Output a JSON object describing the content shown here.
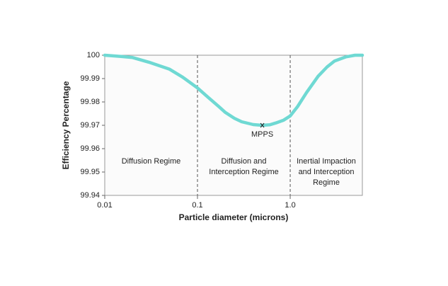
{
  "chart_data": {
    "type": "line",
    "xlabel": "Particle diameter (microns)",
    "ylabel": "Efficiency Percentage",
    "x": [
      0.01,
      0.015,
      0.02,
      0.03,
      0.05,
      0.07,
      0.1,
      0.13,
      0.17,
      0.2,
      0.25,
      0.3,
      0.4,
      0.5,
      0.6,
      0.7,
      0.85,
      1,
      1.2,
      1.5,
      2,
      2.5,
      3,
      4,
      5,
      6
    ],
    "series": [
      {
        "name": "Efficiency",
        "color": "#6fd9d3",
        "values": [
          100,
          99.9995,
          99.999,
          99.997,
          99.994,
          99.9905,
          99.986,
          99.982,
          99.978,
          99.9755,
          99.973,
          99.9715,
          99.9703,
          99.97,
          99.9702,
          99.971,
          99.9722,
          99.974,
          99.978,
          99.984,
          99.991,
          99.995,
          99.9975,
          99.9993,
          100,
          100
        ]
      }
    ],
    "log_x": true,
    "xlim": [
      0.01,
      6
    ],
    "ylim": [
      99.94,
      100
    ],
    "xticks": [
      0.01,
      0.1,
      {
        "value": 1,
        "label": "1.0"
      }
    ],
    "yticks": [
      99.94,
      99.95,
      99.96,
      99.97,
      99.98,
      99.99,
      100
    ],
    "boundaries": [
      0.1,
      1
    ],
    "regions": [
      {
        "lines": [
          "Diffusion Regime"
        ],
        "from": 0.01,
        "to": 0.1
      },
      {
        "lines": [
          "Diffusion and",
          "Interception Regime"
        ],
        "from": 0.1,
        "to": 1
      },
      {
        "lines": [
          "Inertial Impaction",
          "and Interception",
          "Regime"
        ],
        "from": 1,
        "to": 6
      }
    ],
    "annotation": {
      "text": "MPPS",
      "x": 0.5,
      "y": 99.97
    }
  }
}
